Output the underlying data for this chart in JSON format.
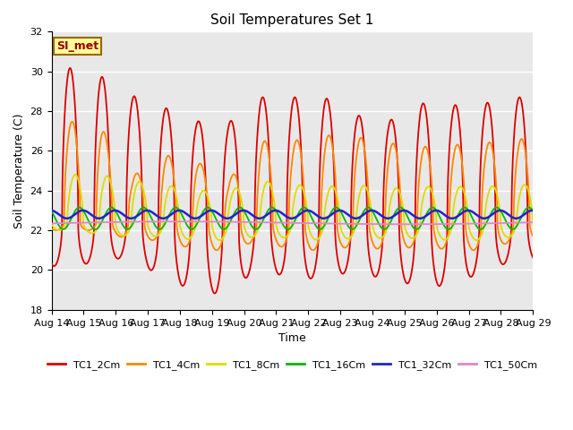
{
  "title": "Soil Temperatures Set 1",
  "xlabel": "Time",
  "ylabel": "Soil Temperature (C)",
  "ylim": [
    18,
    32
  ],
  "yticks": [
    18,
    20,
    22,
    24,
    26,
    28,
    30,
    32
  ],
  "xlim": [
    0,
    15
  ],
  "xtick_labels": [
    "Aug 14",
    "Aug 15",
    "Aug 16",
    "Aug 17",
    "Aug 18",
    "Aug 19",
    "Aug 20",
    "Aug 21",
    "Aug 22",
    "Aug 23",
    "Aug 24",
    "Aug 25",
    "Aug 26",
    "Aug 27",
    "Aug 28",
    "Aug 29"
  ],
  "series_colors": [
    "#dd0000",
    "#ff8800",
    "#dddd00",
    "#00bb00",
    "#2222cc",
    "#dd88cc"
  ],
  "series_names": [
    "TC1_2Cm",
    "TC1_4Cm",
    "TC1_8Cm",
    "TC1_16Cm",
    "TC1_32Cm",
    "TC1_50Cm"
  ],
  "bg_color": "#e8e8e8",
  "annotation_text": "SI_met",
  "annotation_bg": "#ffff99",
  "annotation_border": "#996600",
  "title_fontsize": 11,
  "axis_label_fontsize": 9,
  "tick_fontsize": 8
}
